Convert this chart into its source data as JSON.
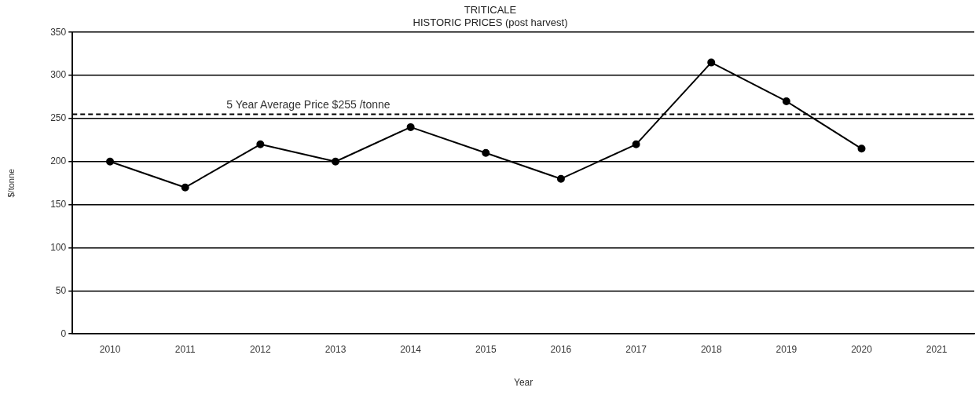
{
  "chart_data": {
    "type": "line",
    "title": [
      "TRITICALE",
      "HISTORIC PRICES (post harvest)"
    ],
    "xlabel": "Year",
    "ylabel": "$/tonne",
    "categories": [
      "2010",
      "2011",
      "2012",
      "2013",
      "2014",
      "2015",
      "2016",
      "2017",
      "2018",
      "2019",
      "2020",
      "2021"
    ],
    "series": [
      {
        "color": "#000000",
        "values": [
          200,
          170,
          220,
          200,
          240,
          210,
          180,
          220,
          315,
          270,
          215,
          null
        ]
      }
    ],
    "ylim": [
      0,
      350
    ],
    "yticks": [
      0,
      50,
      100,
      150,
      200,
      250,
      300,
      350
    ],
    "grid": "y",
    "legend": false,
    "marker": "circle",
    "line_style": "solid",
    "ref_lines": [
      {
        "axis": "y",
        "value": 255,
        "label": "5 Year Average Price $255 /tonne",
        "color": "#000000",
        "line_style": "dashed"
      }
    ]
  }
}
